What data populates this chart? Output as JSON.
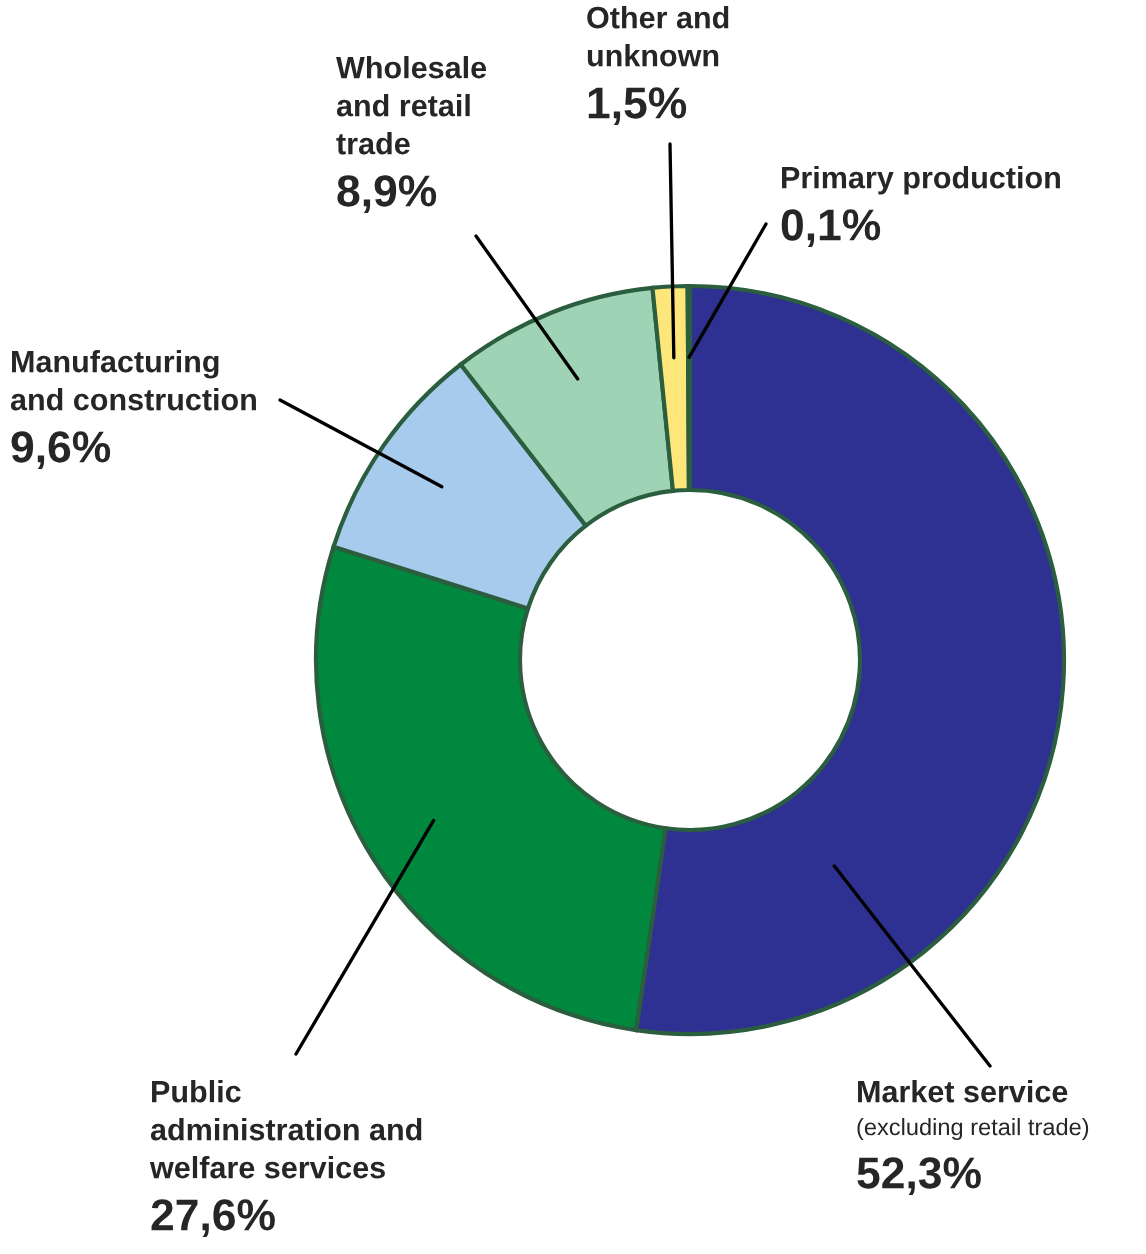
{
  "chart_data": {
    "type": "donut",
    "categories": [
      "Market service",
      "Public administration and welfare services",
      "Manufacturing and construction",
      "Wholesale and retail trade",
      "Other and unknown",
      "Primary production"
    ],
    "values": [
      52.3,
      27.6,
      9.6,
      8.9,
      1.5,
      0.1
    ],
    "colors": [
      "#2e3192",
      "#00883f",
      "#a6cbec",
      "#9fd3b5",
      "#fde77a",
      "#f5c400"
    ],
    "value_labels": [
      "52,3%",
      "27,6%",
      "9,6%",
      "8,9%",
      "1,5%",
      "0,1%"
    ],
    "annotations": [
      "(excluding retail trade)"
    ]
  }
}
